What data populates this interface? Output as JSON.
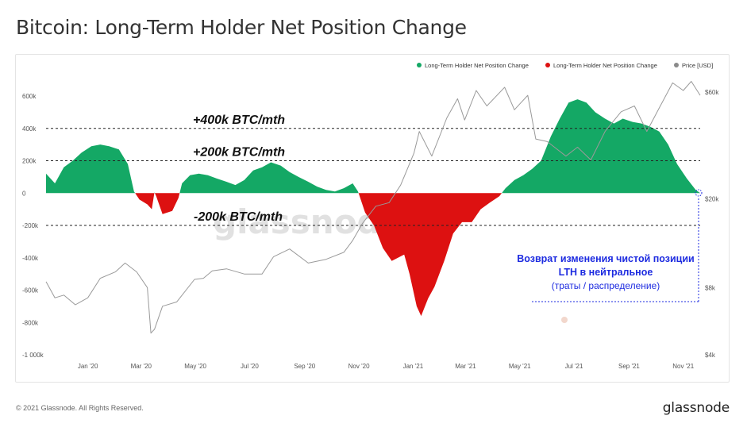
{
  "page": {
    "title": "Bitcoin: Long-Term Holder Net Position Change",
    "footer_left": "© 2021 Glassnode. All Rights Reserved.",
    "footer_brand": "glassnode",
    "watermark": "glassnode"
  },
  "colors": {
    "positive": "#14a865",
    "negative": "#dd1111",
    "price": "#9a9a9a",
    "annotation": "#1d2be0"
  },
  "chart_data": {
    "type": "area",
    "title": "Bitcoin: Long-Term Holder Net Position Change",
    "legend": {
      "placement": "top-right",
      "items": [
        {
          "label": "Long-Term Holder Net Position Change",
          "color": "#14a865"
        },
        {
          "label": "Long-Term Holder Net Position Change",
          "color": "#dd1111"
        },
        {
          "label": "Price [USD]",
          "color": "#8a8a8a"
        }
      ]
    },
    "x_ticks": [
      "Jan '20",
      "Mar '20",
      "May '20",
      "Jul '20",
      "Sep '20",
      "Nov '20",
      "Jan '21",
      "Mar '21",
      "May '21",
      "Jul '21",
      "Sep '21",
      "Nov '21"
    ],
    "x_range": [
      "2019-11-15",
      "2021-11-20"
    ],
    "y_left": {
      "ticks": [
        600,
        400,
        200,
        0,
        -200,
        -400,
        -600,
        -800,
        -1000
      ],
      "tick_labels": [
        "600k",
        "400k",
        "200k",
        "0",
        "-200k",
        "-400k",
        "-600k",
        "-800k",
        "-1 000k"
      ],
      "range": [
        -1000,
        600
      ],
      "unit": "k BTC"
    },
    "y_right": {
      "scale": "log",
      "ticks": [
        60000,
        20000,
        8000,
        4000
      ],
      "tick_labels": [
        "$60k",
        "$20k",
        "$8k",
        "$4k"
      ]
    },
    "reference_lines": [
      {
        "value": 400,
        "label": "+400k BTC/mth"
      },
      {
        "value": 200,
        "label": "+200k BTC/mth"
      },
      {
        "value": -200,
        "label": "-200k BTC/mth"
      }
    ],
    "annotation": {
      "line1": "Возврат изменения чистой позиции",
      "line2": "LTH в нейтральное",
      "line3": "(траты / распределение)"
    },
    "series": [
      {
        "name": "Long-Term Holder Net Position Change",
        "unit": "k BTC",
        "points": [
          [
            "2019-11-15",
            120
          ],
          [
            "2019-11-25",
            60
          ],
          [
            "2019-12-05",
            160
          ],
          [
            "2019-12-15",
            200
          ],
          [
            "2019-12-25",
            250
          ],
          [
            "2020-01-05",
            290
          ],
          [
            "2020-01-15",
            300
          ],
          [
            "2020-01-25",
            290
          ],
          [
            "2020-02-05",
            270
          ],
          [
            "2020-02-15",
            180
          ],
          [
            "2020-02-22",
            10
          ],
          [
            "2020-02-28",
            -40
          ],
          [
            "2020-03-08",
            -70
          ],
          [
            "2020-03-13",
            -100
          ],
          [
            "2020-03-16",
            5
          ],
          [
            "2020-03-18",
            -20
          ],
          [
            "2020-03-25",
            -130
          ],
          [
            "2020-04-05",
            -110
          ],
          [
            "2020-04-12",
            -30
          ],
          [
            "2020-04-16",
            60
          ],
          [
            "2020-04-25",
            110
          ],
          [
            "2020-05-05",
            120
          ],
          [
            "2020-05-15",
            110
          ],
          [
            "2020-05-25",
            90
          ],
          [
            "2020-06-05",
            70
          ],
          [
            "2020-06-15",
            50
          ],
          [
            "2020-06-25",
            80
          ],
          [
            "2020-07-05",
            140
          ],
          [
            "2020-07-15",
            160
          ],
          [
            "2020-07-25",
            190
          ],
          [
            "2020-08-05",
            170
          ],
          [
            "2020-08-15",
            130
          ],
          [
            "2020-08-25",
            100
          ],
          [
            "2020-09-05",
            70
          ],
          [
            "2020-09-15",
            40
          ],
          [
            "2020-09-25",
            20
          ],
          [
            "2020-10-05",
            10
          ],
          [
            "2020-10-15",
            30
          ],
          [
            "2020-10-25",
            60
          ],
          [
            "2020-10-31",
            10
          ],
          [
            "2020-11-08",
            -120
          ],
          [
            "2020-11-18",
            -200
          ],
          [
            "2020-11-28",
            -340
          ],
          [
            "2020-12-08",
            -420
          ],
          [
            "2020-12-15",
            -400
          ],
          [
            "2020-12-22",
            -380
          ],
          [
            "2020-12-28",
            -500
          ],
          [
            "2021-01-05",
            -700
          ],
          [
            "2021-01-10",
            -760
          ],
          [
            "2021-01-18",
            -650
          ],
          [
            "2021-01-25",
            -580
          ],
          [
            "2021-02-05",
            -420
          ],
          [
            "2021-02-15",
            -250
          ],
          [
            "2021-02-25",
            -180
          ],
          [
            "2021-03-08",
            -180
          ],
          [
            "2021-03-18",
            -100
          ],
          [
            "2021-03-28",
            -60
          ],
          [
            "2021-04-08",
            -20
          ],
          [
            "2021-04-15",
            30
          ],
          [
            "2021-04-25",
            80
          ],
          [
            "2021-05-05",
            110
          ],
          [
            "2021-05-15",
            150
          ],
          [
            "2021-05-25",
            200
          ],
          [
            "2021-06-05",
            350
          ],
          [
            "2021-06-15",
            460
          ],
          [
            "2021-06-25",
            560
          ],
          [
            "2021-07-05",
            580
          ],
          [
            "2021-07-15",
            560
          ],
          [
            "2021-07-25",
            500
          ],
          [
            "2021-08-05",
            460
          ],
          [
            "2021-08-15",
            430
          ],
          [
            "2021-08-25",
            460
          ],
          [
            "2021-09-05",
            440
          ],
          [
            "2021-09-15",
            430
          ],
          [
            "2021-09-25",
            410
          ],
          [
            "2021-10-05",
            380
          ],
          [
            "2021-10-15",
            300
          ],
          [
            "2021-10-25",
            180
          ],
          [
            "2021-11-05",
            90
          ],
          [
            "2021-11-15",
            20
          ],
          [
            "2021-11-20",
            0
          ]
        ]
      },
      {
        "name": "Price [USD]",
        "unit": "USD",
        "points": [
          [
            "2019-11-15",
            8500
          ],
          [
            "2019-11-25",
            7200
          ],
          [
            "2019-12-05",
            7400
          ],
          [
            "2019-12-18",
            6700
          ],
          [
            "2020-01-01",
            7200
          ],
          [
            "2020-01-15",
            8800
          ],
          [
            "2020-02-01",
            9400
          ],
          [
            "2020-02-12",
            10300
          ],
          [
            "2020-02-25",
            9400
          ],
          [
            "2020-03-08",
            8000
          ],
          [
            "2020-03-12",
            5000
          ],
          [
            "2020-03-16",
            5200
          ],
          [
            "2020-03-25",
            6600
          ],
          [
            "2020-04-10",
            6900
          ],
          [
            "2020-04-30",
            8700
          ],
          [
            "2020-05-10",
            8800
          ],
          [
            "2020-05-20",
            9500
          ],
          [
            "2020-06-05",
            9700
          ],
          [
            "2020-06-25",
            9200
          ],
          [
            "2020-07-15",
            9200
          ],
          [
            "2020-07-28",
            11000
          ],
          [
            "2020-08-15",
            11900
          ],
          [
            "2020-09-05",
            10300
          ],
          [
            "2020-09-25",
            10700
          ],
          [
            "2020-10-15",
            11500
          ],
          [
            "2020-10-25",
            13000
          ],
          [
            "2020-11-05",
            15500
          ],
          [
            "2020-11-20",
            18500
          ],
          [
            "2020-12-05",
            19200
          ],
          [
            "2020-12-18",
            23000
          ],
          [
            "2021-01-02",
            32000
          ],
          [
            "2021-01-08",
            40000
          ],
          [
            "2021-01-22",
            31000
          ],
          [
            "2021-02-08",
            46000
          ],
          [
            "2021-02-20",
            56000
          ],
          [
            "2021-02-28",
            45000
          ],
          [
            "2021-03-13",
            61000
          ],
          [
            "2021-03-25",
            52000
          ],
          [
            "2021-04-14",
            63000
          ],
          [
            "2021-04-25",
            50000
          ],
          [
            "2021-05-10",
            58000
          ],
          [
            "2021-05-19",
            37000
          ],
          [
            "2021-06-01",
            36000
          ],
          [
            "2021-06-22",
            31000
          ],
          [
            "2021-07-05",
            34000
          ],
          [
            "2021-07-20",
            29800
          ],
          [
            "2021-08-05",
            40000
          ],
          [
            "2021-08-23",
            49000
          ],
          [
            "2021-09-07",
            52000
          ],
          [
            "2021-09-21",
            40000
          ],
          [
            "2021-10-05",
            51000
          ],
          [
            "2021-10-20",
            66000
          ],
          [
            "2021-11-01",
            61000
          ],
          [
            "2021-11-10",
            67000
          ],
          [
            "2021-11-20",
            58000
          ]
        ]
      }
    ]
  }
}
